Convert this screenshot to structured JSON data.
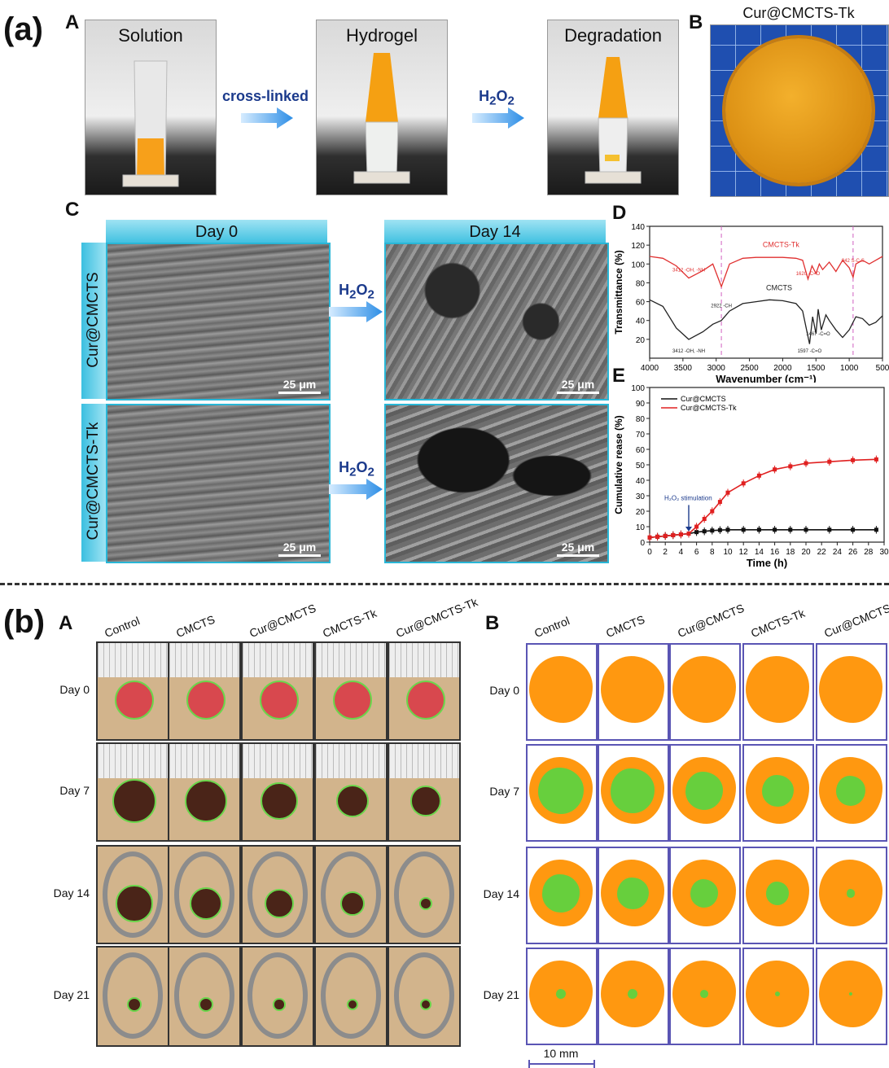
{
  "panel_a": {
    "label": "(a)",
    "sub_A": "A",
    "sub_B": "B",
    "sub_C": "C",
    "sub_D": "D",
    "sub_E": "E",
    "photos": {
      "solution": "Solution",
      "hydrogel": "Hydrogel",
      "degradation": "Degradation",
      "product": "Cur@CMCTS-Tk"
    },
    "arrows": {
      "crosslinked": "cross-linked",
      "h2o2": "H",
      "h2o2_sub": "2",
      "h2o2_o": "O",
      "h2o2_sub2": "2"
    },
    "sem": {
      "day0": "Day 0",
      "day14": "Day 14",
      "row1": "Cur@CMCTS",
      "row2": "Cur@CMCTS-Tk",
      "scale": "25 μm"
    }
  },
  "chart_data": [
    {
      "type": "line",
      "id": "D",
      "xlabel": "Wavenumber (cm⁻¹)",
      "ylabel": "Transmittance (%)",
      "xlim": [
        4000,
        500
      ],
      "ylim": [
        0,
        140
      ],
      "xticks": [
        4000,
        3500,
        3000,
        2500,
        2000,
        1500,
        1000,
        500
      ],
      "yticks": [
        20,
        40,
        60,
        80,
        100,
        120,
        140
      ],
      "series": [
        {
          "name": "CMCTS-Tk",
          "color": "#e03030",
          "x": [
            4000,
            3800,
            3600,
            3412,
            3200,
            3050,
            2922,
            2800,
            2600,
            2400,
            2200,
            2000,
            1800,
            1700,
            1620,
            1560,
            1500,
            1450,
            1400,
            1300,
            1200,
            1100,
            1000,
            942,
            900,
            800,
            700,
            600,
            500
          ],
          "y": [
            108,
            106,
            98,
            85,
            93,
            100,
            76,
            100,
            106,
            107,
            107,
            107,
            106,
            104,
            84,
            98,
            90,
            100,
            94,
            102,
            92,
            104,
            96,
            86,
            100,
            104,
            100,
            104,
            108
          ]
        },
        {
          "name": "CMCTS",
          "color": "#222222",
          "x": [
            4000,
            3800,
            3600,
            3412,
            3200,
            3050,
            2922,
            2800,
            2600,
            2400,
            2200,
            2000,
            1800,
            1700,
            1597,
            1550,
            1500,
            1467,
            1420,
            1350,
            1300,
            1200,
            1100,
            1000,
            900,
            800,
            700,
            600,
            500
          ],
          "y": [
            62,
            55,
            32,
            20,
            28,
            36,
            40,
            50,
            58,
            60,
            62,
            61,
            58,
            50,
            15,
            44,
            26,
            52,
            30,
            46,
            40,
            30,
            22,
            30,
            44,
            42,
            35,
            38,
            45
          ]
        }
      ],
      "annotations": [
        "3412 -OH, -NH",
        "2922 -CH",
        "1597 -C=O",
        "1467 -C=O",
        "942 S-C-S",
        "1620 -C=O"
      ]
    },
    {
      "type": "line",
      "id": "E",
      "xlabel": "Time (h)",
      "ylabel": "Cumulative rease (%)",
      "xlim": [
        0,
        30
      ],
      "ylim": [
        0,
        100
      ],
      "xticks": [
        0,
        2,
        4,
        6,
        8,
        10,
        12,
        14,
        16,
        18,
        20,
        22,
        24,
        26,
        28,
        30
      ],
      "yticks": [
        0,
        10,
        20,
        30,
        40,
        50,
        60,
        70,
        80,
        90,
        100
      ],
      "annotation": "H₂O₂ stimulation",
      "annotation_x": 5,
      "series": [
        {
          "name": "Cur@CMCTS",
          "color": "#111111",
          "x": [
            0,
            1,
            2,
            3,
            4,
            5,
            6,
            7,
            8,
            9,
            10,
            12,
            14,
            16,
            18,
            20,
            23,
            26,
            29
          ],
          "y": [
            3,
            3.5,
            4,
            4.5,
            5,
            5.5,
            6.5,
            7,
            7.5,
            7.8,
            8,
            8,
            8,
            8,
            8,
            8,
            8,
            8,
            8
          ]
        },
        {
          "name": "Cur@CMCTS-Tk",
          "color": "#e02020",
          "x": [
            0,
            1,
            2,
            3,
            4,
            5,
            6,
            7,
            8,
            9,
            10,
            12,
            14,
            16,
            18,
            20,
            23,
            26,
            29
          ],
          "y": [
            3,
            3.5,
            4,
            4.5,
            5,
            5.5,
            10,
            15,
            20,
            26,
            32,
            38,
            43,
            47,
            49,
            51,
            52,
            53,
            53.5
          ]
        }
      ]
    }
  ],
  "panel_b": {
    "label": "(b)",
    "sub_A": "A",
    "sub_B": "B",
    "columns": [
      "Control",
      "CMCTS",
      "Cur@CMCTS",
      "CMCTS-Tk",
      "Cur@CMCTS-Tk"
    ],
    "rows": [
      "Day 0",
      "Day 7",
      "Day 14",
      "Day 21"
    ],
    "scale": "10 mm"
  }
}
